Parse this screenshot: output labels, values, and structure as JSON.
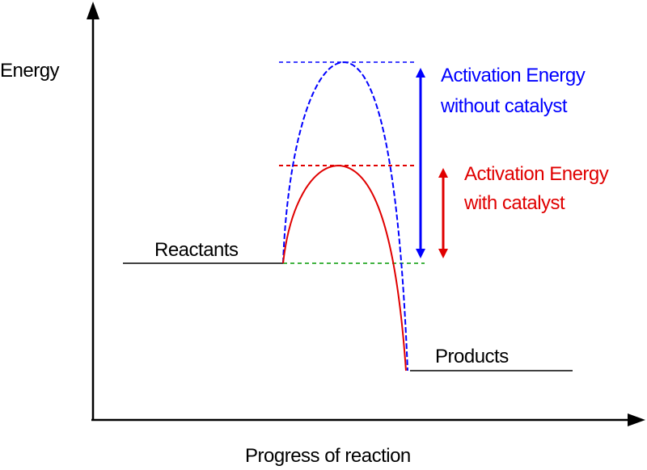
{
  "axes": {
    "y_label": "Energy",
    "x_label": "Progress of reaction"
  },
  "levels": {
    "reactants": "Reactants",
    "products": "Products"
  },
  "annotations": {
    "uncatalysed_line1": "Activation Energy",
    "uncatalysed_line2": "without catalyst",
    "catalysed_line1": "Activation Energy",
    "catalysed_line2": "with catalyst"
  },
  "colors": {
    "axes": "#000000",
    "uncatalysed": "#0000ff",
    "catalysed": "#e00000",
    "baseline_guide": "#009900"
  }
}
